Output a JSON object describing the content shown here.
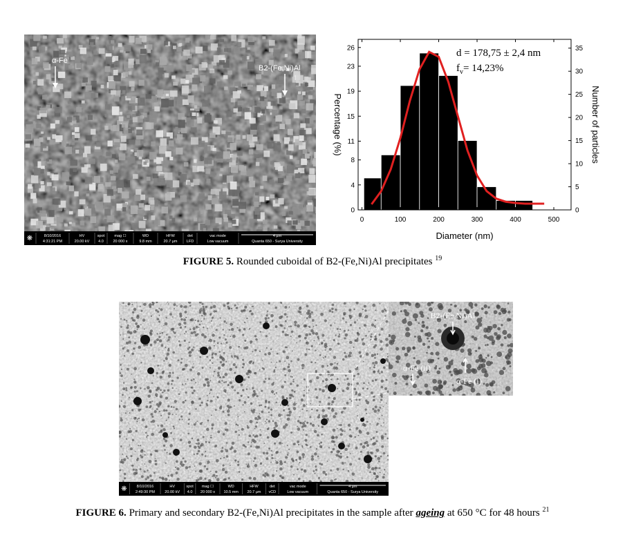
{
  "figure5": {
    "image": {
      "labels": [
        "α-Fe",
        "B2-(Fe,Ni)Al"
      ],
      "info": [
        {
          "h": "8/10/2016",
          "v": "4:31:21 PM"
        },
        {
          "h": "HV",
          "v": "20.00 kV"
        },
        {
          "h": "spot",
          "v": "4.0"
        },
        {
          "h": "mag ☐",
          "v": "20 000 x"
        },
        {
          "h": "WD",
          "v": "9.8 mm"
        },
        {
          "h": "HFW",
          "v": "20.7 µm"
        },
        {
          "h": "det",
          "v": "LFD"
        },
        {
          "h": "vac mode",
          "v": "Low vacuum"
        },
        {
          "h": "4 µm",
          "v": "Quanta 650 - Surya University"
        }
      ]
    },
    "chart_data": {
      "type": "histogram",
      "xlabel": "Diameter (nm)",
      "ylabel": "Percentage (%)",
      "y2label": "Number of particles",
      "annotations": {
        "d": "d = 178,75 ± 2,4 nm",
        "f": "f",
        "f_sub": "v",
        "f_rest": "= 14,23%"
      },
      "bins": [
        5,
        50,
        100,
        150,
        200,
        250,
        300,
        350,
        400,
        445
      ],
      "values": [
        5.1,
        8.8,
        19.9,
        25.1,
        21.5,
        11.1,
        3.7,
        1.5,
        1.5
      ],
      "color": "#000000",
      "fit": {
        "color": "#e02020",
        "x": [
          25,
          50,
          75,
          100,
          125,
          150,
          175,
          200,
          225,
          250,
          275,
          300,
          325,
          350,
          375,
          400,
          425,
          450,
          475
        ],
        "values": [
          0.9,
          3.0,
          6.5,
          11.5,
          17.5,
          22.5,
          25.3,
          24.5,
          20.5,
          15.0,
          9.5,
          5.5,
          3.0,
          1.8,
          1.3,
          1.1,
          1.0,
          1.0,
          1.0
        ]
      },
      "xlim": [
        -10,
        545
      ],
      "xticks": [
        0,
        100,
        200,
        300,
        400,
        500
      ],
      "ylim": [
        0,
        27.3
      ],
      "yticks": [
        0,
        4,
        8,
        11,
        15,
        19,
        23,
        26
      ],
      "y2lim": [
        0,
        36.9
      ],
      "y2ticks": [
        0,
        5,
        10,
        15,
        20,
        25,
        30,
        35
      ]
    },
    "caption": {
      "label": "FIGURE 5.",
      "text": "Rounded cuboidal of B2-(Fe,Ni)Al precipitates",
      "ref": "19"
    }
  },
  "figure6": {
    "image": {
      "info": [
        {
          "h": "8/10/2016",
          "v": "2:49:30 PM"
        },
        {
          "h": "HV",
          "v": "20.00 kV"
        },
        {
          "h": "spot",
          "v": "4.0"
        },
        {
          "h": "mag ☐",
          "v": "20 000 x"
        },
        {
          "h": "WD",
          "v": "10.5 mm"
        },
        {
          "h": "HFW",
          "v": "20.7 µm"
        },
        {
          "h": "det",
          "v": "vCD"
        },
        {
          "h": "vac mode",
          "v": "Low vacuum"
        },
        {
          "h": "4 µm",
          "v": "Quanta 650 - Surya University"
        }
      ]
    },
    "inset": {
      "labels": [
        "B2-(Fe,Ni)Al",
        "α-Fe (ii)",
        "α-Fe (i)"
      ]
    },
    "caption": {
      "label": "FIGURE 6.",
      "text": "Primary and secondary B2-(Fe,Ni)Al precipitates in the sample after",
      "emphasis": "ageing",
      "text2": "at 650 °C for 48 hours",
      "ref": "21"
    }
  }
}
